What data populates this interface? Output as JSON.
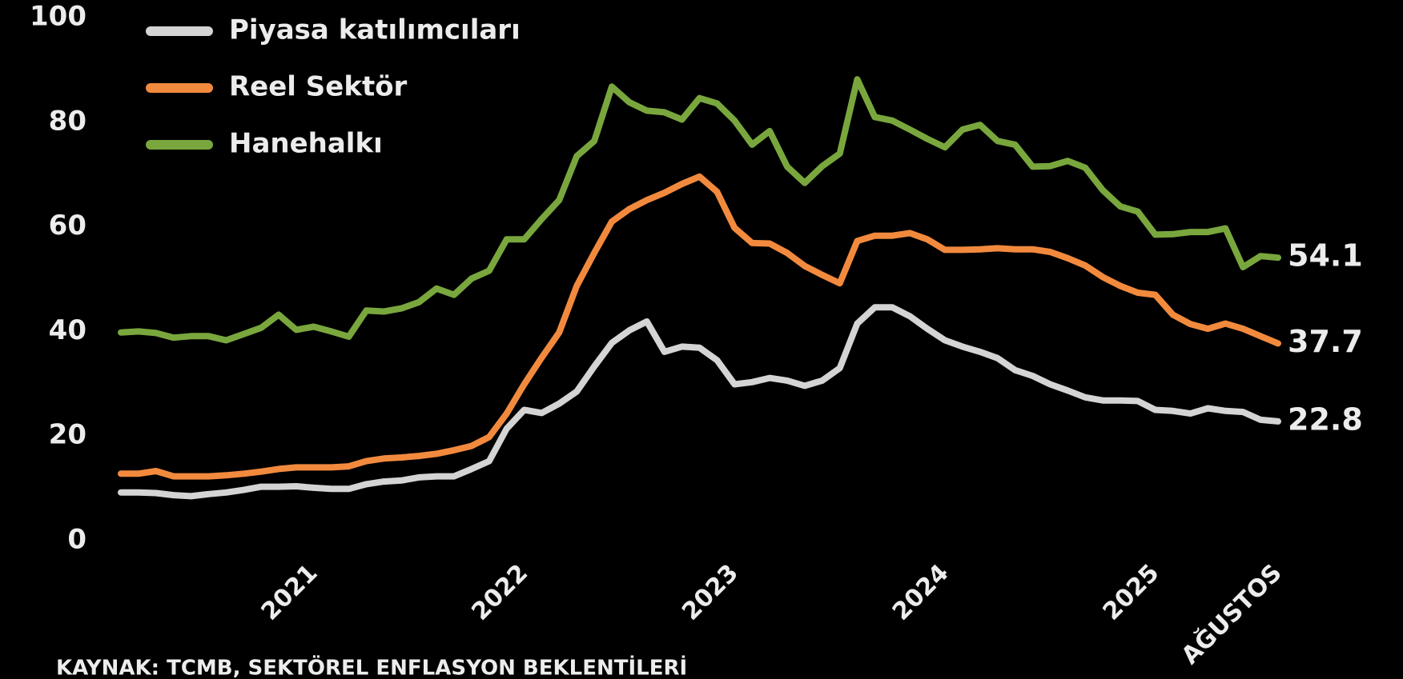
{
  "chart_data": {
    "type": "line",
    "source": "KAYNAK: TCMB, SEKTÖREL ENFLASYON BEKLENTİLERİ",
    "categories": [
      null,
      null,
      null,
      null,
      null,
      null,
      null,
      null,
      null,
      null,
      null,
      "2021",
      null,
      null,
      null,
      null,
      null,
      null,
      null,
      null,
      null,
      null,
      null,
      "2022",
      null,
      null,
      null,
      null,
      null,
      null,
      null,
      null,
      null,
      null,
      null,
      "2023",
      null,
      null,
      null,
      null,
      null,
      null,
      null,
      null,
      null,
      null,
      null,
      "2024",
      null,
      null,
      null,
      null,
      null,
      null,
      null,
      null,
      null,
      null,
      null,
      "2025",
      null,
      null,
      null,
      null,
      null,
      null,
      "AĞUSTOS"
    ],
    "ylim": [
      0,
      100
    ],
    "yticks": [
      0,
      20,
      40,
      60,
      80,
      100
    ],
    "grid": false,
    "legend": "top-left",
    "series": [
      {
        "name": "Piyasa katılımcıları",
        "color": "#d4d4d4",
        "values": [
          9.2,
          9.2,
          9.1,
          8.7,
          8.5,
          8.9,
          9.2,
          9.7,
          10.3,
          10.3,
          10.4,
          10.1,
          9.9,
          9.9,
          10.8,
          11.3,
          11.5,
          12.1,
          12.3,
          12.3,
          13.7,
          15.2,
          21.4,
          25,
          24.4,
          26.2,
          28.5,
          33.3,
          37.8,
          40.2,
          41.9,
          36.1,
          37.1,
          36.9,
          34.5,
          29.9,
          30.3,
          31.1,
          30.6,
          29.6,
          30.6,
          33,
          41.5,
          44.6,
          44.6,
          42.9,
          40.5,
          38.3,
          37.1,
          36.1,
          34.9,
          32.6,
          31.5,
          29.9,
          28.7,
          27.4,
          26.8,
          26.8,
          26.7,
          25,
          24.8,
          24.3,
          25.3,
          24.8,
          24.6,
          23.1,
          22.8
        ]
      },
      {
        "name": "Reel Sektör",
        "color": "#f28a3e",
        "values": [
          12.8,
          12.8,
          13.3,
          12.3,
          12.3,
          12.3,
          12.5,
          12.8,
          13.2,
          13.7,
          14,
          14,
          14,
          14.2,
          15.2,
          15.7,
          15.9,
          16.2,
          16.6,
          17.3,
          18.1,
          19.8,
          24.3,
          29.9,
          35,
          39.8,
          48.7,
          55,
          61,
          63.4,
          65.1,
          66.5,
          68.2,
          69.6,
          66.7,
          59.8,
          56.9,
          56.8,
          55,
          52.5,
          50.8,
          49.2,
          57.3,
          58.3,
          58.3,
          58.8,
          57.6,
          55.6,
          55.6,
          55.7,
          55.9,
          55.7,
          55.7,
          55.2,
          54,
          52.6,
          50.4,
          48.7,
          47.4,
          47,
          43.2,
          41.4,
          40.5,
          41.5,
          40.5,
          39.1,
          37.7
        ]
      },
      {
        "name": "Hanehalkı",
        "color": "#79a73d",
        "values": [
          39.8,
          40,
          39.7,
          38.8,
          39.1,
          39.1,
          38.3,
          39.5,
          40.7,
          43.2,
          40.3,
          40.9,
          40,
          39,
          44,
          43.8,
          44.4,
          45.6,
          48.2,
          47,
          50.1,
          51.6,
          57.6,
          57.6,
          61.5,
          65.1,
          73.5,
          76.4,
          86.8,
          83.8,
          82.2,
          81.9,
          80.5,
          84.6,
          83.6,
          80.3,
          75.7,
          78.3,
          71.5,
          68.4,
          71.6,
          74,
          88.2,
          81,
          80.3,
          78.6,
          76.8,
          75.2,
          78.6,
          79.5,
          76.4,
          75.7,
          71.5,
          71.6,
          72.6,
          71.3,
          67,
          63.9,
          62.9,
          58.5,
          58.6,
          59,
          59,
          59.7,
          52.3,
          54.4,
          54.1
        ]
      }
    ]
  }
}
